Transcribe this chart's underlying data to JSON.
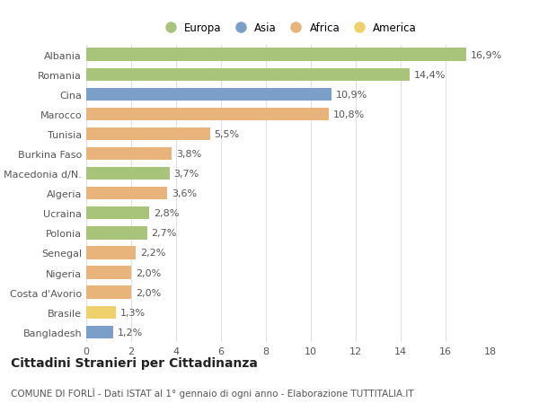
{
  "categories": [
    "Albania",
    "Romania",
    "Cina",
    "Marocco",
    "Tunisia",
    "Burkina Faso",
    "Macedonia d/N.",
    "Algeria",
    "Ucraina",
    "Polonia",
    "Senegal",
    "Nigeria",
    "Costa d'Avorio",
    "Brasile",
    "Bangladesh"
  ],
  "values": [
    16.9,
    14.4,
    10.9,
    10.8,
    5.5,
    3.8,
    3.7,
    3.6,
    2.8,
    2.7,
    2.2,
    2.0,
    2.0,
    1.3,
    1.2
  ],
  "labels": [
    "16,9%",
    "14,4%",
    "10,9%",
    "10,8%",
    "5,5%",
    "3,8%",
    "3,7%",
    "3,6%",
    "2,8%",
    "2,7%",
    "2,2%",
    "2,0%",
    "2,0%",
    "1,3%",
    "1,2%"
  ],
  "colors": [
    "#a8c47a",
    "#a8c47a",
    "#7b9fc8",
    "#e8b47c",
    "#e8b47c",
    "#e8b47c",
    "#a8c47a",
    "#e8b47c",
    "#a8c47a",
    "#a8c47a",
    "#e8b47c",
    "#e8b47c",
    "#e8b47c",
    "#f0d06a",
    "#7b9fc8"
  ],
  "legend": [
    {
      "label": "Europa",
      "color": "#a8c47a"
    },
    {
      "label": "Asia",
      "color": "#7b9fc8"
    },
    {
      "label": "Africa",
      "color": "#e8b47c"
    },
    {
      "label": "America",
      "color": "#f0d06a"
    }
  ],
  "xlim": [
    0,
    18
  ],
  "xticks": [
    0,
    2,
    4,
    6,
    8,
    10,
    12,
    14,
    16,
    18
  ],
  "title": "Cittadini Stranieri per Cittadinanza",
  "subtitle": "COMUNE DI FORLÌ - Dati ISTAT al 1° gennaio di ogni anno - Elaborazione TUTTITALIA.IT",
  "fig_background": "#ffffff",
  "plot_background": "#ffffff",
  "grid_color": "#e0e0e0",
  "bar_height": 0.65,
  "label_fontsize": 8,
  "tick_fontsize": 8,
  "title_fontsize": 10,
  "subtitle_fontsize": 7.5
}
